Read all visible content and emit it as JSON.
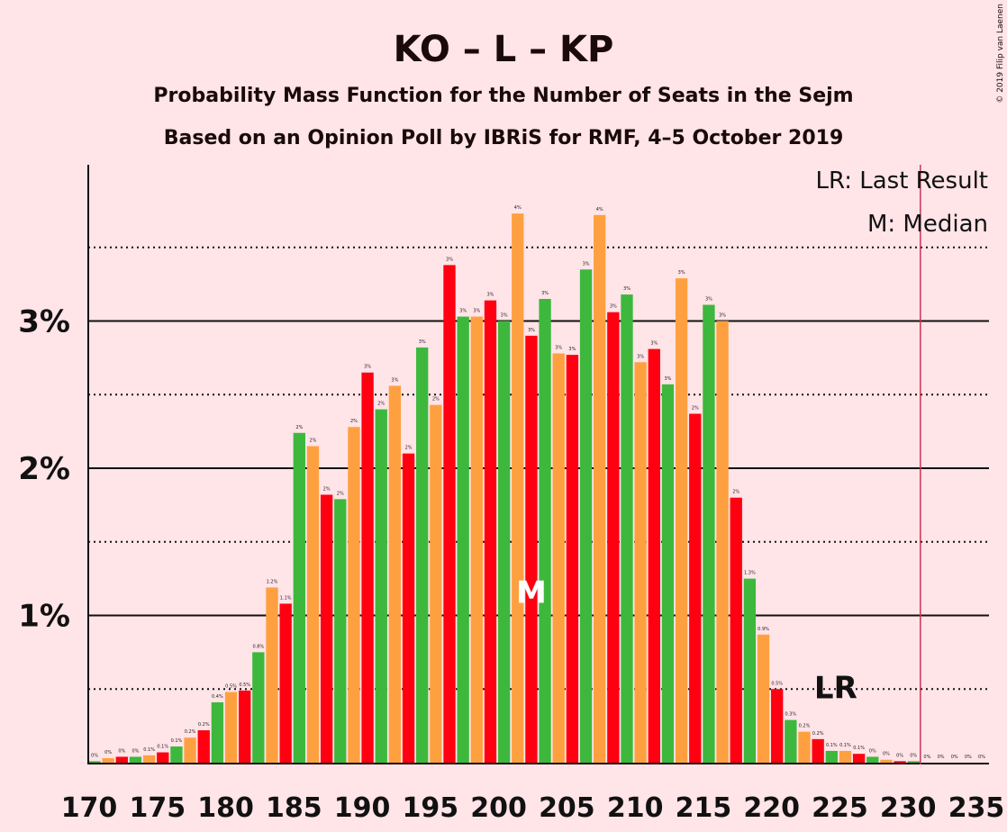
{
  "header": {
    "title": "KO – L – KP",
    "subtitle1": "Probability Mass Function for the Number of Seats in the Sejm",
    "subtitle2": "Based on an Opinion Poll by IBRiS for RMF, 4–5 October 2019",
    "credit": "© 2019 Filip van Laenen"
  },
  "legend": {
    "lr": "LR: Last Result",
    "median": "M: Median"
  },
  "markers": {
    "median_label": "M",
    "median_seat": 202,
    "last_result_label": "LR",
    "last_result_seat": 231
  },
  "colors": {
    "background": "#FFE4E8",
    "green": "#3DB83D",
    "orange": "#FFA040",
    "red": "#FF0010",
    "axis": "#111111",
    "lr_line": "#CC3355",
    "median_text": "#FFFFFF"
  },
  "chart_data": {
    "type": "bar",
    "x": [
      170,
      171,
      172,
      173,
      174,
      175,
      176,
      177,
      178,
      179,
      180,
      181,
      182,
      183,
      184,
      185,
      186,
      187,
      188,
      189,
      190,
      191,
      192,
      193,
      194,
      195,
      196,
      197,
      198,
      199,
      200,
      201,
      202,
      203,
      204,
      205,
      206,
      207,
      208,
      209,
      210,
      211,
      212,
      213,
      214,
      215,
      216,
      217,
      218,
      219,
      220,
      221,
      222,
      223,
      224,
      225,
      226,
      227,
      228,
      229,
      230,
      231,
      232,
      233,
      234,
      235
    ],
    "values": [
      0.01,
      0.03,
      0.04,
      0.04,
      0.05,
      0.07,
      0.11,
      0.17,
      0.22,
      0.41,
      0.48,
      0.49,
      0.75,
      1.19,
      1.08,
      2.24,
      2.15,
      1.82,
      1.79,
      2.28,
      2.65,
      2.4,
      2.56,
      2.1,
      2.82,
      2.43,
      3.38,
      3.03,
      3.03,
      3.14,
      3.0,
      3.73,
      2.9,
      3.15,
      2.78,
      2.77,
      3.35,
      3.72,
      3.06,
      3.18,
      2.72,
      2.81,
      2.57,
      3.29,
      2.37,
      3.11,
      3.0,
      1.8,
      1.25,
      0.87,
      0.5,
      0.29,
      0.21,
      0.16,
      0.08,
      0.08,
      0.06,
      0.04,
      0.02,
      0.01,
      0.01,
      0.0,
      0.0,
      0.0,
      0.0,
      0.0
    ],
    "labels": [
      "0%",
      "0%",
      "0%",
      "0%",
      "0.1%",
      "0.1%",
      "0.1%",
      "0.2%",
      "0.2%",
      "0.4%",
      "0.5%",
      "0.5%",
      "0.8%",
      "1.2%",
      "1.1%",
      "2%",
      "2%",
      "2%",
      "2%",
      "2%",
      "3%",
      "2%",
      "3%",
      "2%",
      "3%",
      "2%",
      "3%",
      "3%",
      "3%",
      "3%",
      "3%",
      "4%",
      "3%",
      "3%",
      "3%",
      "3%",
      "3%",
      "4%",
      "3%",
      "3%",
      "3%",
      "3%",
      "3%",
      "3%",
      "2%",
      "3%",
      "3%",
      "2%",
      "1.3%",
      "0.9%",
      "0.5%",
      "0.3%",
      "0.2%",
      "0.2%",
      "0.1%",
      "0.1%",
      "0.1%",
      "0%",
      "0%",
      "0%",
      "0%",
      "0%",
      "0%",
      "0%",
      "0%",
      "0%"
    ],
    "bar_colors": [
      "green",
      "orange",
      "red"
    ],
    "xlim": [
      170,
      235
    ],
    "ylim": [
      0,
      4.0
    ],
    "yticks": [
      1,
      2,
      3
    ],
    "ytick_labels": [
      "1%",
      "2%",
      "3%"
    ],
    "dotted_gridlines": [
      0.5,
      1.5,
      2.5,
      3.5
    ],
    "xticks": [
      170,
      175,
      180,
      185,
      190,
      195,
      200,
      205,
      210,
      215,
      220,
      225,
      230,
      235
    ],
    "xtick_labels": [
      "170",
      "175",
      "180",
      "185",
      "190",
      "195",
      "200",
      "205",
      "210",
      "215",
      "220",
      "225",
      "230",
      "235"
    ]
  }
}
